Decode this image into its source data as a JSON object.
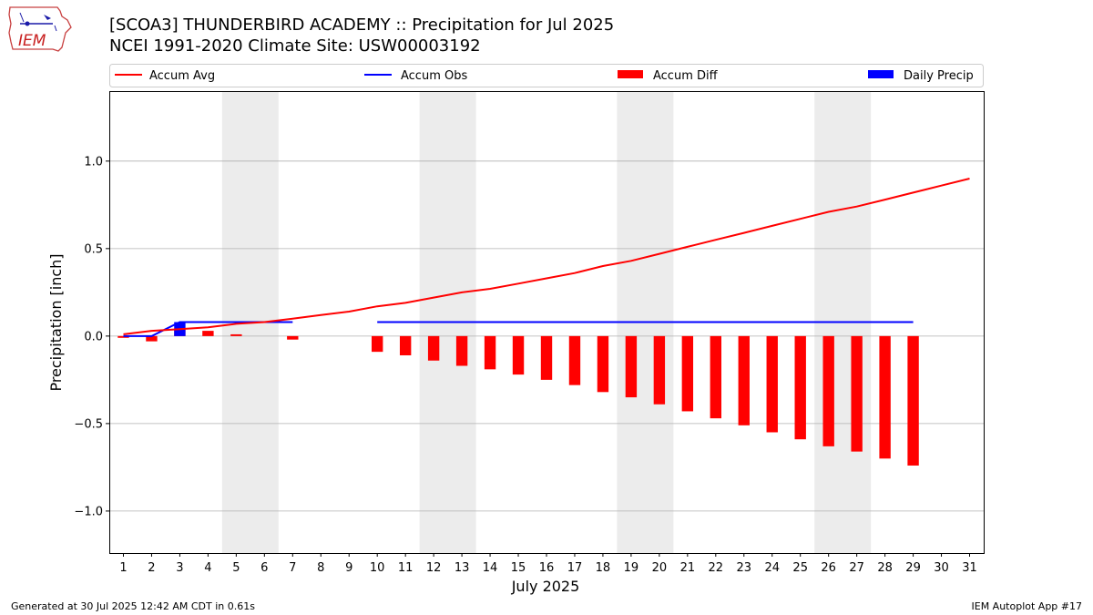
{
  "header": {
    "title_line1": "[SCOA3] THUNDERBIRD ACADEMY :: Precipitation for Jul 2025",
    "title_line2": "NCEI 1991-2020 Climate Site: USW00003192",
    "logo_text": "IEM"
  },
  "footer": {
    "generated": "Generated at 30 Jul 2025 12:42 AM CDT in 0.61s",
    "app": "IEM Autoplot App #17"
  },
  "colors": {
    "accum_avg": "#ff0000",
    "accum_obs": "#0000ff",
    "accum_diff": "#ff0000",
    "daily_precip": "#0000ff",
    "weekend_shade": "#ececec",
    "grid": "#b0b0b0"
  },
  "chart_data": {
    "type": "bar",
    "xlabel": "July 2025",
    "ylabel": "Precipitation [inch]",
    "xlim": [
      0.5,
      31.5
    ],
    "ylim": [
      -1.24,
      1.4
    ],
    "x_ticks": [
      1,
      2,
      3,
      4,
      5,
      6,
      7,
      8,
      9,
      10,
      11,
      12,
      13,
      14,
      15,
      16,
      17,
      18,
      19,
      20,
      21,
      22,
      23,
      24,
      25,
      26,
      27,
      28,
      29,
      30,
      31
    ],
    "y_ticks": [
      -1.0,
      -0.5,
      0.0,
      0.5,
      1.0
    ],
    "y_tick_labels": [
      "−1.0",
      "−0.5",
      "0.0",
      "0.5",
      "1.0"
    ],
    "grid": "horizontal",
    "legend_position": "top",
    "weekend_spans": [
      [
        4.5,
        6.5
      ],
      [
        11.5,
        13.5
      ],
      [
        18.5,
        20.5
      ],
      [
        25.5,
        27.5
      ]
    ],
    "legend": [
      "Accum Avg",
      "Accum Obs",
      "Accum Diff",
      "Daily Precip"
    ],
    "series": [
      {
        "name": "Accum Avg",
        "kind": "line",
        "x": [
          1,
          2,
          3,
          4,
          5,
          6,
          7,
          8,
          9,
          10,
          11,
          12,
          13,
          14,
          15,
          16,
          17,
          18,
          19,
          20,
          21,
          22,
          23,
          24,
          25,
          26,
          27,
          28,
          29,
          30,
          31
        ],
        "values": [
          0.01,
          0.03,
          0.04,
          0.05,
          0.07,
          0.08,
          0.1,
          0.12,
          0.14,
          0.17,
          0.19,
          0.22,
          0.25,
          0.27,
          0.3,
          0.33,
          0.36,
          0.4,
          0.43,
          0.47,
          0.51,
          0.55,
          0.59,
          0.63,
          0.67,
          0.71,
          0.74,
          0.78,
          0.82,
          0.86,
          0.9
        ]
      },
      {
        "name": "Accum Obs",
        "kind": "line",
        "segments": [
          {
            "x": [
              1,
              2,
              3,
              4,
              5,
              6,
              7
            ],
            "values": [
              0.0,
              0.0,
              0.08,
              0.08,
              0.08,
              0.08,
              0.08
            ]
          },
          {
            "x": [
              10,
              11,
              12,
              13,
              14,
              15,
              16,
              17,
              18,
              19,
              20,
              21,
              22,
              23,
              24,
              25,
              26,
              27,
              28,
              29
            ],
            "values": [
              0.08,
              0.08,
              0.08,
              0.08,
              0.08,
              0.08,
              0.08,
              0.08,
              0.08,
              0.08,
              0.08,
              0.08,
              0.08,
              0.08,
              0.08,
              0.08,
              0.08,
              0.08,
              0.08,
              0.08
            ]
          }
        ]
      },
      {
        "name": "Accum Diff",
        "kind": "bar",
        "x": [
          1,
          2,
          3,
          4,
          5,
          7,
          10,
          11,
          12,
          13,
          14,
          15,
          16,
          17,
          18,
          19,
          20,
          21,
          22,
          23,
          24,
          25,
          26,
          27,
          28,
          29
        ],
        "values": [
          -0.01,
          -0.03,
          0.04,
          0.03,
          0.01,
          -0.02,
          -0.09,
          -0.11,
          -0.14,
          -0.17,
          -0.19,
          -0.22,
          -0.25,
          -0.28,
          -0.32,
          -0.35,
          -0.39,
          -0.43,
          -0.47,
          -0.51,
          -0.55,
          -0.59,
          -0.63,
          -0.66,
          -0.7,
          -0.74
        ]
      },
      {
        "name": "Daily Precip",
        "kind": "bar",
        "x": [
          3
        ],
        "values": [
          0.08
        ]
      }
    ]
  }
}
